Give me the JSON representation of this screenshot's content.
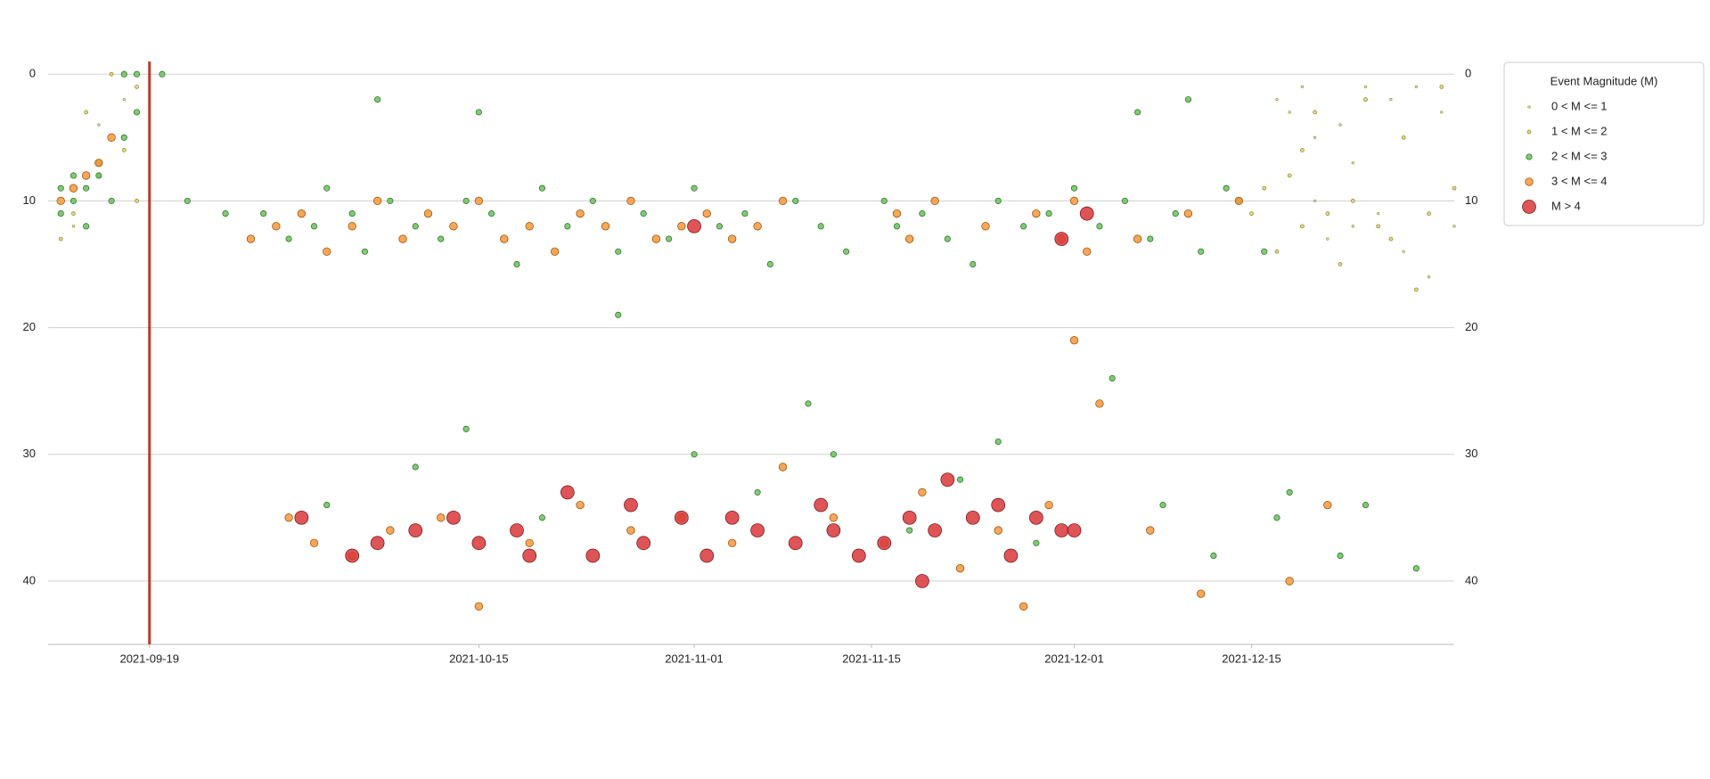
{
  "chart_data": {
    "type": "scatter",
    "legend_title": "Event Magnitude (M)",
    "legend_position": "upper right outside",
    "xlim": [
      "2021-09-11",
      "2021-12-31"
    ],
    "xticks": [
      "2021-09-19",
      "2021-10-15",
      "2021-11-01",
      "2021-11-15",
      "2021-12-01",
      "2021-12-15"
    ],
    "ylim": [
      -1,
      45
    ],
    "y_inverted": true,
    "yticks": [
      0,
      10,
      20,
      30,
      40
    ],
    "grid": true,
    "vline": "2021-09-19",
    "vline_color": "#c0392b",
    "series": [
      {
        "name": "0 < M <= 1",
        "color": "#e8e3b0",
        "edge": "#9a9440",
        "size": 1.3,
        "x": [
          "2021-12-17",
          "2021-12-18",
          "2021-12-19",
          "2021-12-20",
          "2021-12-21",
          "2021-12-22",
          "2021-12-23",
          "2021-12-24",
          "2021-12-25",
          "2021-12-26",
          "2021-12-27",
          "2021-12-28",
          "2021-12-29",
          "2021-12-30",
          "2021-12-31",
          "2021-12-23",
          "2021-12-20",
          "2021-09-13",
          "2021-09-15",
          "2021-09-17"
        ],
        "values": [
          2,
          3,
          1,
          10,
          13,
          4,
          12,
          1,
          11,
          2,
          14,
          1,
          16,
          3,
          12,
          7,
          5,
          12,
          4,
          2
        ]
      },
      {
        "name": "1 < M <= 2",
        "color": "#d9d27a",
        "edge": "#8a8420",
        "size": 2,
        "x": [
          "2021-09-12",
          "2021-09-13",
          "2021-09-14",
          "2021-09-15",
          "2021-09-16",
          "2021-09-17",
          "2021-09-18",
          "2021-09-18",
          "2021-12-15",
          "2021-12-16",
          "2021-12-17",
          "2021-12-18",
          "2021-12-19",
          "2021-12-20",
          "2021-12-21",
          "2021-12-22",
          "2021-12-23",
          "2021-12-24",
          "2021-12-26",
          "2021-12-27",
          "2021-12-28",
          "2021-12-29",
          "2021-12-30",
          "2021-12-31",
          "2021-12-19",
          "2021-12-25"
        ],
        "values": [
          13,
          11,
          3,
          8,
          0,
          6,
          1,
          10,
          11,
          9,
          14,
          8,
          12,
          3,
          11,
          15,
          10,
          2,
          13,
          5,
          17,
          11,
          1,
          9,
          6,
          12
        ]
      },
      {
        "name": "2 < M <= 3",
        "color": "#6dbf5e",
        "edge": "#1e6b1e",
        "size": 3.2,
        "x": [
          "2021-09-12",
          "2021-09-12",
          "2021-09-13",
          "2021-09-13",
          "2021-09-14",
          "2021-09-14",
          "2021-09-15",
          "2021-09-15",
          "2021-09-16",
          "2021-09-17",
          "2021-09-18",
          "2021-09-18",
          "2021-09-17",
          "2021-09-20",
          "2021-09-22",
          "2021-09-25",
          "2021-09-28",
          "2021-09-30",
          "2021-10-02",
          "2021-10-03",
          "2021-10-05",
          "2021-10-06",
          "2021-10-08",
          "2021-10-10",
          "2021-10-12",
          "2021-10-14",
          "2021-10-16",
          "2021-10-18",
          "2021-10-20",
          "2021-10-22",
          "2021-10-24",
          "2021-10-26",
          "2021-10-28",
          "2021-10-30",
          "2021-11-01",
          "2021-11-03",
          "2021-11-05",
          "2021-11-07",
          "2021-11-09",
          "2021-11-11",
          "2021-11-13",
          "2021-11-16",
          "2021-11-17",
          "2021-11-19",
          "2021-11-21",
          "2021-11-23",
          "2021-11-25",
          "2021-11-27",
          "2021-11-29",
          "2021-12-01",
          "2021-12-03",
          "2021-12-05",
          "2021-12-07",
          "2021-12-09",
          "2021-12-11",
          "2021-12-13",
          "2021-12-14",
          "2021-12-16",
          "2021-10-03",
          "2021-10-10",
          "2021-10-14",
          "2021-10-20",
          "2021-10-26",
          "2021-11-01",
          "2021-11-06",
          "2021-11-10",
          "2021-11-12",
          "2021-11-18",
          "2021-11-22",
          "2021-11-25",
          "2021-11-28",
          "2021-12-04",
          "2021-12-08",
          "2021-12-12",
          "2021-12-17",
          "2021-12-18",
          "2021-12-22",
          "2021-12-24",
          "2021-12-28",
          "2021-10-15",
          "2021-12-06",
          "2021-12-10",
          "2021-10-07"
        ],
        "values": [
          9,
          11,
          8,
          10,
          9,
          12,
          7,
          8,
          10,
          5,
          3,
          0,
          0,
          0,
          10,
          11,
          11,
          13,
          12,
          9,
          11,
          14,
          10,
          12,
          13,
          10,
          11,
          15,
          9,
          12,
          10,
          14,
          11,
          13,
          9,
          12,
          11,
          15,
          10,
          12,
          14,
          10,
          12,
          11,
          13,
          15,
          10,
          12,
          11,
          9,
          12,
          10,
          13,
          11,
          14,
          9,
          10,
          14,
          34,
          31,
          28,
          35,
          19,
          30,
          33,
          26,
          30,
          36,
          32,
          29,
          37,
          24,
          34,
          38,
          35,
          33,
          38,
          34,
          39,
          3,
          3,
          2,
          2
        ]
      },
      {
        "name": "3 < M <= 4",
        "color": "#f7973a",
        "edge": "#8a4a00",
        "size": 4.3,
        "x": [
          "2021-09-12",
          "2021-09-13",
          "2021-09-14",
          "2021-09-15",
          "2021-09-16",
          "2021-09-27",
          "2021-09-29",
          "2021-10-01",
          "2021-10-03",
          "2021-10-05",
          "2021-10-07",
          "2021-10-09",
          "2021-10-11",
          "2021-10-13",
          "2021-10-15",
          "2021-10-17",
          "2021-10-19",
          "2021-10-21",
          "2021-10-23",
          "2021-10-25",
          "2021-10-27",
          "2021-10-29",
          "2021-10-31",
          "2021-11-02",
          "2021-11-04",
          "2021-11-06",
          "2021-11-08",
          "2021-11-17",
          "2021-11-18",
          "2021-11-20",
          "2021-11-24",
          "2021-11-28",
          "2021-11-30",
          "2021-12-01",
          "2021-12-02",
          "2021-12-06",
          "2021-12-10",
          "2021-12-14",
          "2021-09-30",
          "2021-10-02",
          "2021-10-05",
          "2021-10-08",
          "2021-10-12",
          "2021-10-15",
          "2021-10-19",
          "2021-10-23",
          "2021-10-27",
          "2021-10-31",
          "2021-11-04",
          "2021-11-08",
          "2021-11-12",
          "2021-11-16",
          "2021-11-19",
          "2021-11-22",
          "2021-11-25",
          "2021-11-27",
          "2021-11-29",
          "2021-12-01",
          "2021-12-03",
          "2021-12-07",
          "2021-12-11",
          "2021-12-18",
          "2021-12-21"
        ],
        "values": [
          10,
          9,
          8,
          7,
          5,
          13,
          12,
          11,
          14,
          12,
          10,
          13,
          11,
          12,
          10,
          13,
          12,
          14,
          11,
          12,
          10,
          13,
          12,
          11,
          13,
          12,
          10,
          11,
          13,
          10,
          12,
          11,
          13,
          10,
          14,
          13,
          11,
          10,
          35,
          37,
          38,
          36,
          35,
          42,
          37,
          34,
          36,
          35,
          37,
          31,
          35,
          37,
          33,
          39,
          36,
          42,
          34,
          21,
          26,
          36,
          41,
          40,
          34
        ]
      },
      {
        "name": "M > 4",
        "color": "#d9363a",
        "edge": "#6b0f10",
        "size": 7.5,
        "x": [
          "2021-10-01",
          "2021-10-05",
          "2021-10-07",
          "2021-10-10",
          "2021-10-13",
          "2021-10-15",
          "2021-10-18",
          "2021-10-19",
          "2021-10-22",
          "2021-10-24",
          "2021-10-27",
          "2021-10-28",
          "2021-10-31",
          "2021-11-02",
          "2021-11-04",
          "2021-11-06",
          "2021-11-09",
          "2021-11-11",
          "2021-11-12",
          "2021-11-14",
          "2021-11-16",
          "2021-11-18",
          "2021-11-19",
          "2021-11-20",
          "2021-11-21",
          "2021-11-23",
          "2021-11-25",
          "2021-11-26",
          "2021-11-28",
          "2021-11-30",
          "2021-12-01",
          "2021-11-01",
          "2021-11-30",
          "2021-12-02"
        ],
        "values": [
          35,
          38,
          37,
          36,
          35,
          37,
          36,
          38,
          33,
          38,
          34,
          37,
          35,
          38,
          35,
          36,
          37,
          34,
          36,
          38,
          37,
          35,
          40,
          36,
          32,
          35,
          34,
          38,
          35,
          36,
          36,
          12,
          13,
          11
        ]
      }
    ]
  }
}
